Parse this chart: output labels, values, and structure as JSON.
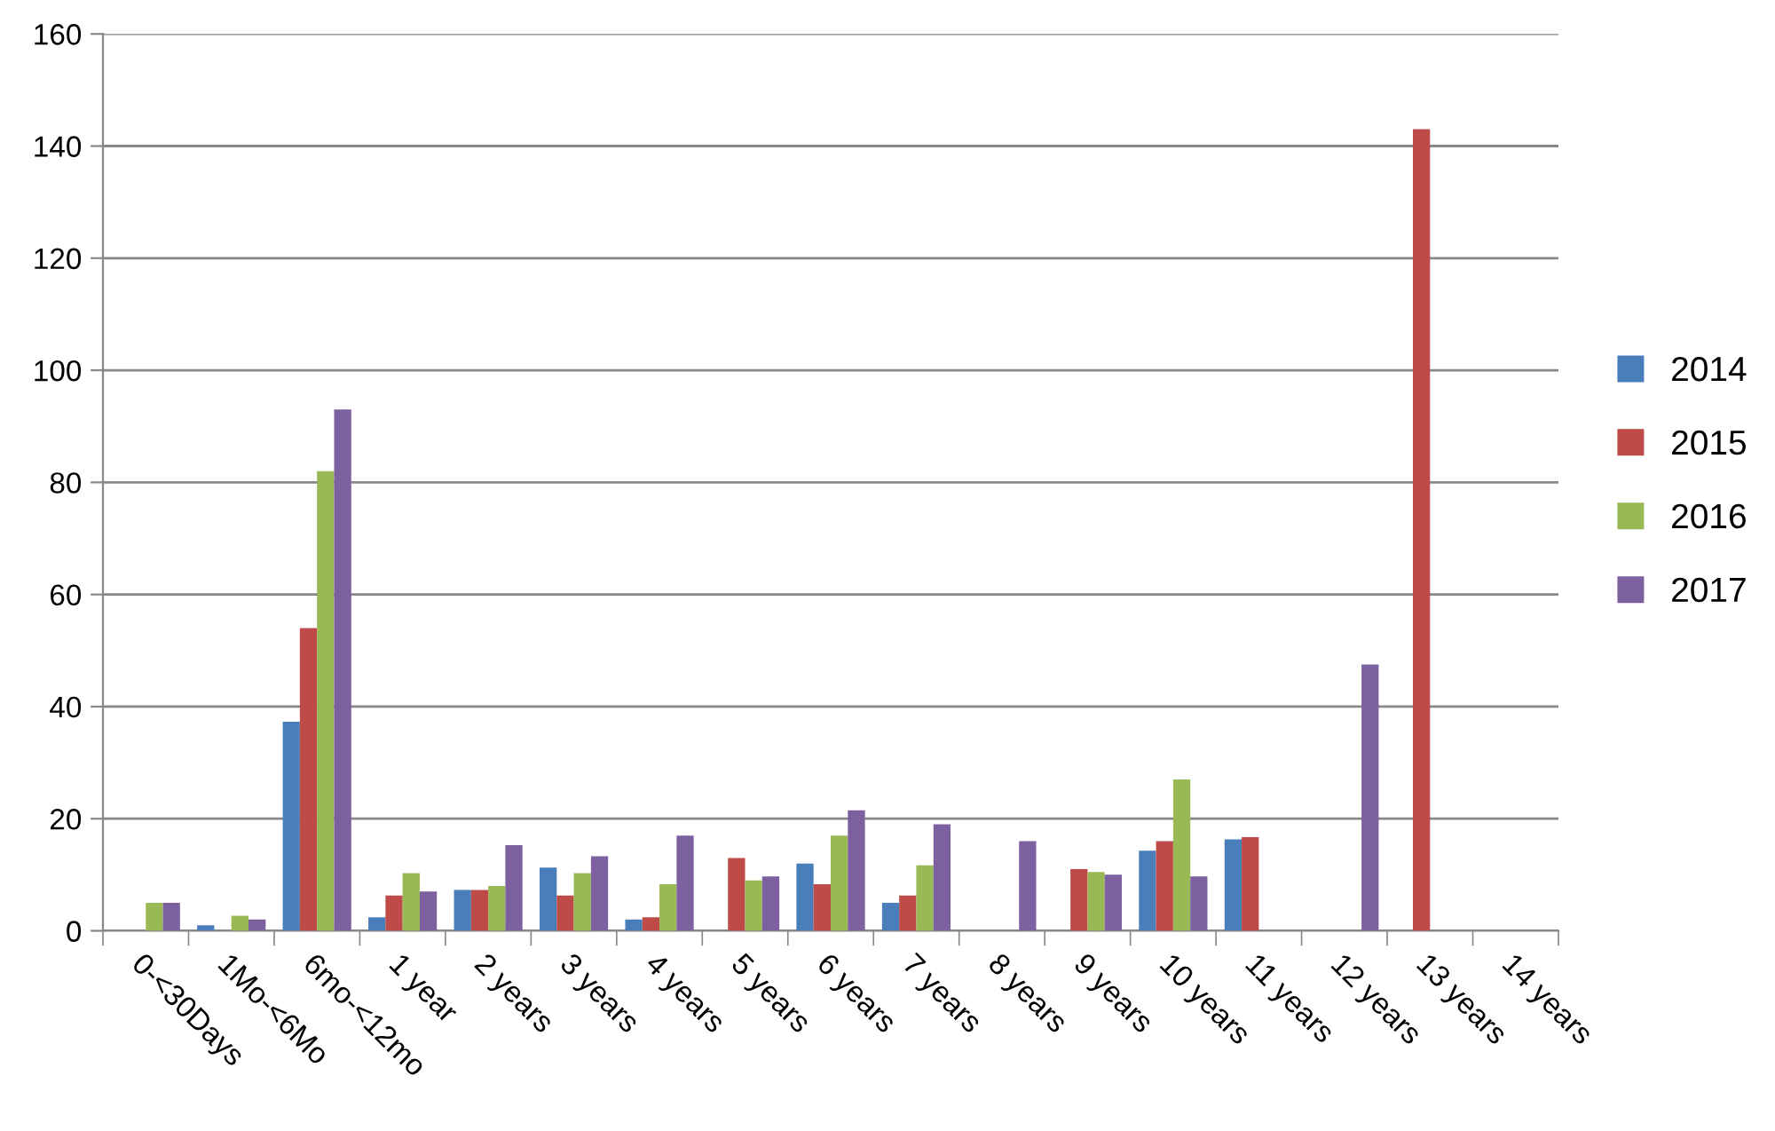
{
  "chart_data": {
    "type": "bar",
    "categories": [
      "0-<30Days",
      "1Mo-<6Mo",
      "6mo-<12mo",
      "1 year",
      "2 years",
      "3 years",
      "4 years",
      "5 years",
      "6 years",
      "7 years",
      "8 years",
      "9 years",
      "10 years",
      "11 years",
      "12 years",
      "13 years",
      "14 years"
    ],
    "series": [
      {
        "name": "2014",
        "color": "#4a7ebb",
        "values": [
          null,
          1,
          37.3,
          2.4,
          7.3,
          11.3,
          2,
          null,
          12,
          5,
          null,
          null,
          14.3,
          16.3,
          null,
          null,
          null
        ]
      },
      {
        "name": "2015",
        "color": "#be4b48",
        "values": [
          null,
          null,
          54,
          6.3,
          7.3,
          6.3,
          2.4,
          13,
          8.3,
          6.3,
          null,
          11,
          16,
          16.7,
          null,
          143,
          null
        ]
      },
      {
        "name": "2016",
        "color": "#98b954",
        "values": [
          5,
          2.7,
          82,
          10.3,
          8,
          10.3,
          8.3,
          9,
          17,
          11.7,
          null,
          10.5,
          27,
          null,
          null,
          null,
          null
        ]
      },
      {
        "name": "2017",
        "color": "#7d60a0",
        "values": [
          5,
          2,
          93,
          7,
          15.3,
          13.3,
          17,
          9.7,
          21.5,
          19,
          16,
          10,
          9.7,
          null,
          47.5,
          null,
          null
        ]
      }
    ],
    "ylim": [
      0,
      160
    ],
    "yticks": [
      0,
      20,
      40,
      60,
      80,
      100,
      120,
      140,
      160
    ],
    "grid": "y",
    "legend": "right"
  }
}
